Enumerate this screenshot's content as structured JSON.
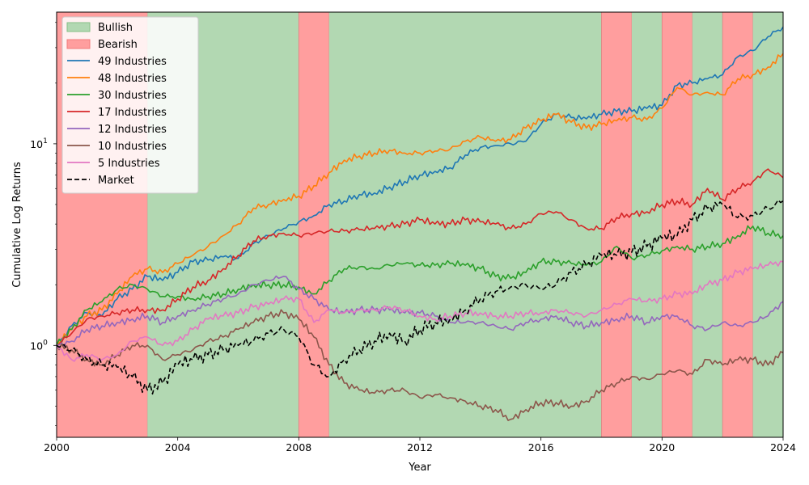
{
  "chart_data": {
    "type": "line",
    "title": "",
    "xlabel": "Year",
    "ylabel": "Cumulative Log Returns",
    "yscale": "log",
    "xlim": [
      2000,
      2024
    ],
    "ylim": [
      0.35,
      45
    ],
    "grid": false,
    "legend_position": "top-left",
    "x_ticks": [
      2000,
      2004,
      2008,
      2012,
      2016,
      2020,
      2024
    ],
    "x_tick_labels": [
      "2000",
      "2004",
      "2008",
      "2012",
      "2016",
      "2020",
      "2024"
    ],
    "y_ticks": [
      1,
      10
    ],
    "y_tick_labels": [
      "10^0",
      "10^1"
    ],
    "regimes": [
      {
        "label": "Bearish",
        "start": 2000,
        "end": 2003,
        "color": "#ff9e9e"
      },
      {
        "label": "Bullish",
        "start": 2003,
        "end": 2008,
        "color": "#b2d8b2"
      },
      {
        "label": "Bearish",
        "start": 2008,
        "end": 2009,
        "color": "#ff9e9e"
      },
      {
        "label": "Bullish",
        "start": 2009,
        "end": 2018,
        "color": "#b2d8b2"
      },
      {
        "label": "Bearish",
        "start": 2018,
        "end": 2019,
        "color": "#ff9e9e"
      },
      {
        "label": "Bullish",
        "start": 2019,
        "end": 2020,
        "color": "#b2d8b2"
      },
      {
        "label": "Bearish",
        "start": 2020,
        "end": 2021,
        "color": "#ff9e9e"
      },
      {
        "label": "Bullish",
        "start": 2021,
        "end": 2022,
        "color": "#b2d8b2"
      },
      {
        "label": "Bearish",
        "start": 2022,
        "end": 2023,
        "color": "#ff9e9e"
      },
      {
        "label": "Bullish",
        "start": 2023,
        "end": 2024,
        "color": "#b2d8b2"
      }
    ],
    "legend": [
      {
        "label": "Bullish",
        "kind": "patch",
        "color": "#b2d8b2",
        "edge": "#86c086"
      },
      {
        "label": "Bearish",
        "kind": "patch",
        "color": "#ff9e9e",
        "edge": "#f07a7a"
      },
      {
        "label": "49 Industries",
        "kind": "line",
        "color": "#1f77b4"
      },
      {
        "label": "48 Industries",
        "kind": "line",
        "color": "#ff7f0e"
      },
      {
        "label": "30 Industries",
        "kind": "line",
        "color": "#2ca02c"
      },
      {
        "label": "17 Industries",
        "kind": "line",
        "color": "#d62728"
      },
      {
        "label": "12 Industries",
        "kind": "line",
        "color": "#9467bd"
      },
      {
        "label": "10 Industries",
        "kind": "line",
        "color": "#8c564b"
      },
      {
        "label": "5 Industries",
        "kind": "line",
        "color": "#e377c2"
      },
      {
        "label": "Market",
        "kind": "dashed",
        "color": "#000000"
      }
    ],
    "series": [
      {
        "name": "49 Industries",
        "color": "#1f77b4",
        "dashed": false,
        "x": [
          2000,
          2000.5,
          2001,
          2001.5,
          2002,
          2002.5,
          2003,
          2003.5,
          2004,
          2004.5,
          2005,
          2005.5,
          2006,
          2006.5,
          2007,
          2007.5,
          2008,
          2008.5,
          2009,
          2009.5,
          2010,
          2010.5,
          2011,
          2011.5,
          2012,
          2012.5,
          2013,
          2013.5,
          2014,
          2014.5,
          2015,
          2015.5,
          2016,
          2016.5,
          2017,
          2017.5,
          2018,
          2018.5,
          2019,
          2019.5,
          2020,
          2020.5,
          2021,
          2021.5,
          2022,
          2022.5,
          2023,
          2023.5,
          2024
        ],
        "y": [
          1.0,
          1.25,
          1.45,
          1.4,
          1.7,
          1.9,
          2.2,
          2.1,
          2.3,
          2.6,
          2.65,
          2.75,
          2.7,
          3.2,
          3.5,
          3.8,
          4.1,
          4.4,
          5.0,
          5.2,
          5.6,
          5.7,
          6.1,
          6.5,
          7.0,
          7.3,
          7.6,
          8.8,
          9.6,
          9.8,
          10.0,
          10.3,
          12.5,
          14.0,
          13.5,
          13.3,
          14.0,
          14.5,
          14.5,
          15.0,
          15.5,
          19.5,
          20.0,
          21.0,
          22.0,
          27.0,
          29.0,
          34.0,
          38.0
        ]
      },
      {
        "name": "48 Industries",
        "color": "#ff7f0e",
        "dashed": false,
        "x": [
          2000,
          2000.5,
          2001,
          2001.5,
          2002,
          2002.5,
          2003,
          2003.5,
          2004,
          2004.5,
          2005,
          2005.5,
          2006,
          2006.5,
          2007,
          2007.5,
          2008,
          2008.5,
          2009,
          2009.5,
          2010,
          2010.5,
          2011,
          2011.5,
          2012,
          2012.5,
          2013,
          2013.5,
          2014,
          2014.5,
          2015,
          2015.5,
          2016,
          2016.5,
          2017,
          2017.5,
          2018,
          2018.5,
          2019,
          2019.5,
          2020,
          2020.5,
          2021,
          2021.5,
          2022,
          2022.5,
          2023,
          2023.5,
          2024
        ],
        "y": [
          1.0,
          1.2,
          1.4,
          1.5,
          1.8,
          2.2,
          2.4,
          2.3,
          2.55,
          2.8,
          3.1,
          3.5,
          4.0,
          4.8,
          5.0,
          5.3,
          5.5,
          6.2,
          7.2,
          8.3,
          8.7,
          9.0,
          9.3,
          9.0,
          9.0,
          9.2,
          9.4,
          10.3,
          10.8,
          10.3,
          10.5,
          12.0,
          13.0,
          14.0,
          12.8,
          12.0,
          12.5,
          13.0,
          13.5,
          13.2,
          15.0,
          19.0,
          17.5,
          18.0,
          17.5,
          21.0,
          22.0,
          24.0,
          28.0
        ]
      },
      {
        "name": "30 Industries",
        "color": "#2ca02c",
        "dashed": false,
        "x": [
          2000,
          2000.5,
          2001,
          2001.5,
          2002,
          2002.5,
          2003,
          2003.5,
          2004,
          2004.5,
          2005,
          2005.5,
          2006,
          2006.5,
          2007,
          2007.5,
          2008,
          2008.5,
          2009,
          2009.5,
          2010,
          2010.5,
          2011,
          2011.5,
          2012,
          2012.5,
          2013,
          2013.5,
          2014,
          2014.5,
          2015,
          2015.5,
          2016,
          2016.5,
          2017,
          2017.5,
          2018,
          2018.5,
          2019,
          2019.5,
          2020,
          2020.5,
          2021,
          2021.5,
          2022,
          2022.5,
          2023,
          2023.5,
          2024
        ],
        "y": [
          1.0,
          1.2,
          1.5,
          1.65,
          1.9,
          2.0,
          1.9,
          1.75,
          1.75,
          1.7,
          1.75,
          1.8,
          1.9,
          2.0,
          2.0,
          2.0,
          1.95,
          1.8,
          2.1,
          2.4,
          2.45,
          2.4,
          2.5,
          2.55,
          2.5,
          2.5,
          2.55,
          2.5,
          2.4,
          2.2,
          2.15,
          2.3,
          2.6,
          2.6,
          2.55,
          2.5,
          2.6,
          3.1,
          2.7,
          2.8,
          2.95,
          3.1,
          3.0,
          3.1,
          3.2,
          3.5,
          3.9,
          3.6,
          3.5
        ]
      },
      {
        "name": "17 Industries",
        "color": "#d62728",
        "dashed": false,
        "x": [
          2000,
          2000.5,
          2001,
          2001.5,
          2002,
          2002.5,
          2003,
          2003.5,
          2004,
          2004.5,
          2005,
          2005.5,
          2006,
          2006.5,
          2007,
          2007.5,
          2008,
          2008.5,
          2009,
          2009.5,
          2010,
          2010.5,
          2011,
          2011.5,
          2012,
          2012.5,
          2013,
          2013.5,
          2014,
          2014.5,
          2015,
          2015.5,
          2016,
          2016.5,
          2017,
          2017.5,
          2018,
          2018.5,
          2019,
          2019.5,
          2020,
          2020.5,
          2021,
          2021.5,
          2022,
          2022.5,
          2023,
          2023.5,
          2024
        ],
        "y": [
          1.0,
          1.15,
          1.35,
          1.4,
          1.45,
          1.5,
          1.5,
          1.5,
          1.7,
          1.95,
          2.1,
          2.4,
          2.8,
          3.3,
          3.5,
          3.6,
          3.5,
          3.6,
          3.7,
          3.7,
          3.75,
          3.8,
          3.9,
          4.0,
          4.2,
          4.0,
          4.0,
          4.2,
          4.1,
          4.0,
          3.8,
          4.0,
          4.5,
          4.6,
          4.2,
          3.8,
          3.8,
          4.3,
          4.5,
          4.6,
          5.0,
          5.2,
          5.0,
          6.0,
          5.3,
          6.0,
          6.5,
          7.5,
          6.8
        ]
      },
      {
        "name": "12 Industries",
        "color": "#9467bd",
        "dashed": false,
        "x": [
          2000,
          2000.5,
          2001,
          2001.5,
          2002,
          2002.5,
          2003,
          2003.5,
          2004,
          2004.5,
          2005,
          2005.5,
          2006,
          2006.5,
          2007,
          2007.5,
          2008,
          2008.5,
          2009,
          2009.5,
          2010,
          2010.5,
          2011,
          2011.5,
          2012,
          2012.5,
          2013,
          2013.5,
          2014,
          2014.5,
          2015,
          2015.5,
          2016,
          2016.5,
          2017,
          2017.5,
          2018,
          2018.5,
          2019,
          2019.5,
          2020,
          2020.5,
          2021,
          2021.5,
          2022,
          2022.5,
          2023,
          2023.5,
          2024
        ],
        "y": [
          1.0,
          1.05,
          1.2,
          1.25,
          1.3,
          1.35,
          1.4,
          1.3,
          1.4,
          1.5,
          1.6,
          1.7,
          1.8,
          2.0,
          2.1,
          2.2,
          1.9,
          1.7,
          1.5,
          1.45,
          1.5,
          1.5,
          1.5,
          1.45,
          1.45,
          1.4,
          1.3,
          1.3,
          1.3,
          1.25,
          1.2,
          1.3,
          1.35,
          1.4,
          1.3,
          1.25,
          1.3,
          1.35,
          1.4,
          1.3,
          1.4,
          1.4,
          1.25,
          1.2,
          1.3,
          1.25,
          1.3,
          1.4,
          1.65
        ]
      },
      {
        "name": "10 Industries",
        "color": "#8c564b",
        "dashed": false,
        "x": [
          2000,
          2000.5,
          2001,
          2001.5,
          2002,
          2002.5,
          2003,
          2003.5,
          2004,
          2004.5,
          2005,
          2005.5,
          2006,
          2006.5,
          2007,
          2007.5,
          2008,
          2008.5,
          2009,
          2009.5,
          2010,
          2010.5,
          2011,
          2011.5,
          2012,
          2012.5,
          2013,
          2013.5,
          2014,
          2014.5,
          2015,
          2015.5,
          2016,
          2016.5,
          2017,
          2017.5,
          2018,
          2018.5,
          2019,
          2019.5,
          2020,
          2020.5,
          2021,
          2021.5,
          2022,
          2022.5,
          2023,
          2023.5,
          2024
        ],
        "y": [
          1.0,
          0.95,
          0.85,
          0.8,
          0.9,
          1.0,
          1.0,
          0.85,
          0.9,
          0.95,
          1.05,
          1.1,
          1.2,
          1.3,
          1.4,
          1.45,
          1.35,
          1.1,
          0.8,
          0.65,
          0.6,
          0.58,
          0.6,
          0.6,
          0.55,
          0.57,
          0.55,
          0.53,
          0.5,
          0.48,
          0.43,
          0.48,
          0.52,
          0.52,
          0.5,
          0.53,
          0.6,
          0.65,
          0.7,
          0.68,
          0.72,
          0.75,
          0.72,
          0.85,
          0.8,
          0.85,
          0.85,
          0.8,
          0.92
        ]
      },
      {
        "name": "5 Industries",
        "color": "#e377c2",
        "dashed": false,
        "x": [
          2000,
          2000.5,
          2001,
          2001.5,
          2002,
          2002.5,
          2003,
          2003.5,
          2004,
          2004.5,
          2005,
          2005.5,
          2006,
          2006.5,
          2007,
          2007.5,
          2008,
          2008.5,
          2009,
          2009.5,
          2010,
          2010.5,
          2011,
          2011.5,
          2012,
          2012.5,
          2013,
          2013.5,
          2014,
          2014.5,
          2015,
          2015.5,
          2016,
          2016.5,
          2017,
          2017.5,
          2018,
          2018.5,
          2019,
          2019.5,
          2020,
          2020.5,
          2021,
          2021.5,
          2022,
          2022.5,
          2023,
          2023.5,
          2024
        ],
        "y": [
          1.0,
          0.85,
          0.9,
          0.85,
          0.9,
          1.05,
          1.1,
          1.0,
          1.05,
          1.2,
          1.35,
          1.4,
          1.45,
          1.55,
          1.6,
          1.7,
          1.7,
          1.3,
          1.5,
          1.45,
          1.5,
          1.5,
          1.55,
          1.5,
          1.4,
          1.35,
          1.4,
          1.45,
          1.45,
          1.4,
          1.4,
          1.45,
          1.45,
          1.5,
          1.45,
          1.4,
          1.5,
          1.6,
          1.7,
          1.65,
          1.7,
          1.8,
          1.8,
          2.0,
          2.1,
          2.3,
          2.4,
          2.5,
          2.6
        ]
      },
      {
        "name": "Market",
        "color": "#000000",
        "dashed": true,
        "x": [
          2000,
          2000.5,
          2001,
          2001.5,
          2002,
          2002.5,
          2003,
          2003.5,
          2004,
          2004.5,
          2005,
          2005.5,
          2006,
          2006.5,
          2007,
          2007.5,
          2008,
          2008.5,
          2009,
          2009.5,
          2010,
          2010.5,
          2011,
          2011.5,
          2012,
          2012.5,
          2013,
          2013.5,
          2014,
          2014.5,
          2015,
          2015.5,
          2016,
          2016.5,
          2017,
          2017.5,
          2018,
          2018.5,
          2019,
          2019.5,
          2020,
          2020.5,
          2021,
          2021.5,
          2022,
          2022.5,
          2023,
          2023.5,
          2024
        ],
        "y": [
          1.0,
          0.95,
          0.85,
          0.8,
          0.78,
          0.7,
          0.6,
          0.65,
          0.8,
          0.85,
          0.9,
          0.95,
          1.0,
          1.05,
          1.15,
          1.2,
          1.1,
          0.8,
          0.7,
          0.85,
          0.95,
          1.05,
          1.15,
          1.05,
          1.2,
          1.3,
          1.35,
          1.5,
          1.7,
          1.85,
          1.95,
          2.0,
          1.9,
          2.0,
          2.3,
          2.5,
          2.8,
          2.8,
          2.9,
          3.1,
          3.4,
          3.5,
          4.2,
          4.8,
          5.0,
          4.3,
          4.4,
          4.8,
          5.2
        ]
      }
    ]
  }
}
